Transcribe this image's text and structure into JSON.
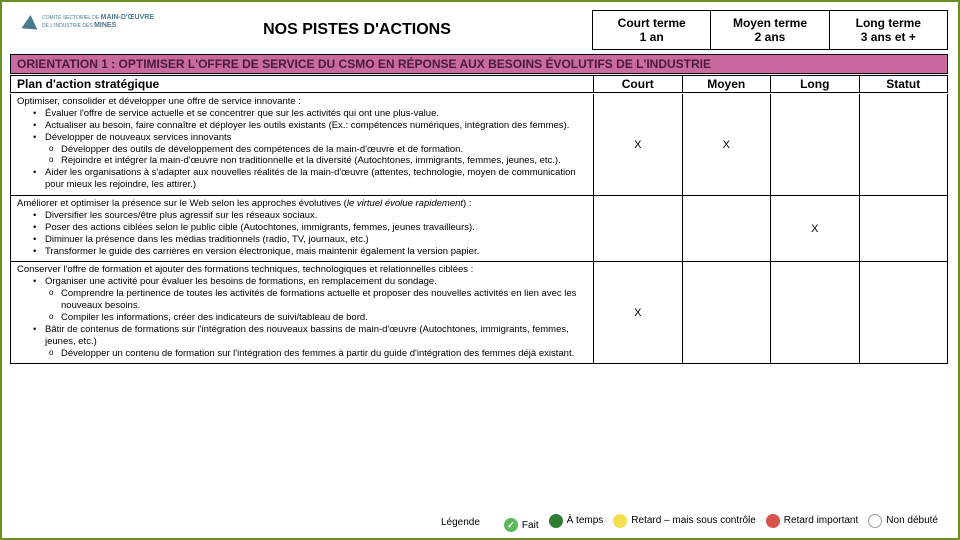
{
  "logo": {
    "line1": "COMITÉ SECTORIEL DE",
    "line2": "MAIN-D'ŒUVRE",
    "line3": "DE L'INDUSTRIE DES",
    "line4": "MINES"
  },
  "title": "NOS PISTES D'ACTIONS",
  "terms": [
    {
      "label": "Court terme",
      "duration": "1 an"
    },
    {
      "label": "Moyen terme",
      "duration": "2 ans"
    },
    {
      "label": "Long terme",
      "duration": "3 ans et +"
    }
  ],
  "orientation": "ORIENTATION 1 : OPTIMISER L'OFFRE DE SERVICE DU CSMO EN RÉPONSE AUX BESOINS ÉVOLUTIFS DE L'INDUSTRIE",
  "plan_header": {
    "title": "Plan d'action stratégique",
    "cols": [
      "Court",
      "Moyen",
      "Long",
      "Statut"
    ]
  },
  "rows": [
    {
      "intro": "Optimiser, consolider et développer une offre de service innovante :",
      "bullets": [
        "Évaluer l'offre de service actuelle et se concentrer que sur les activités qui ont une plus-value.",
        "Actualiser au besoin, faire connaître et déployer les outils existants (Ex.: compétences numériques, intégration des femmes).",
        "Développer de nouveaux services innovants"
      ],
      "sub1": [
        "Développer des outils de développement des compétences de la main-d'œuvre et de formation.",
        "Rejoindre et intégrer la main-d'œuvre non traditionnelle et la diversité (Autochtones, immigrants, femmes, jeunes, etc.)."
      ],
      "bullets_after": [
        "Aider les organisations à s'adapter aux nouvelles réalités de la main-d'œuvre (attentes, technologie, moyen de communication pour mieux les rejoindre, les attirer.)"
      ],
      "marks": [
        "X",
        "X",
        "",
        ""
      ]
    },
    {
      "intro_pre": "Améliorer et optimiser la présence sur le Web selon les approches évolutives (",
      "intro_italic": "le virtuel évolue rapidement",
      "intro_post": ") :",
      "bullets": [
        "Diversifier les sources/être plus agressif sur les réseaux sociaux.",
        "Poser des actions ciblées selon le public cible (Autochtones, immigrants, femmes, jeunes travailleurs).",
        "Diminuer la présence dans les médias traditionnels (radio, TV, journaux, etc.)",
        "Transformer le guide des carrières en version électronique, mais maintenir également la version papier."
      ],
      "marks": [
        "",
        "",
        "X",
        ""
      ]
    },
    {
      "intro": "Conserver l'offre de formation et ajouter des formations techniques, technologiques et relationnelles ciblées :",
      "bullets": [
        "Organiser une activité pour évaluer les besoins de formations, en remplacement du sondage."
      ],
      "sub1": [
        "Comprendre la pertinence de toutes les activités de formations actuelle et proposer des nouvelles activités en lien avec les nouveaux besoins.",
        "Compiler les informations, créer des indicateurs de suivi/tableau de bord."
      ],
      "bullets_after": [
        "Bâtir de contenus de formations sur l'intégration des nouveaux bassins de main-d'œuvre (Autochtones, immigrants, femmes, jeunes, etc.)"
      ],
      "sub2": [
        "Développer un contenu de formation sur l'intégration des femmes à partir du guide d'intégration des femmes déjà existant."
      ],
      "marks": [
        "X",
        "",
        "",
        ""
      ]
    }
  ],
  "legend": {
    "title": "Légende",
    "items": [
      {
        "label": "Fait",
        "color": "#5cb85c",
        "check": true
      },
      {
        "label": "À temps",
        "color": "#2e7d32",
        "check": false
      },
      {
        "label": "Retard – mais sous contrôle",
        "color": "#f5e050",
        "check": false
      },
      {
        "label": "Retard important",
        "color": "#d9534f",
        "check": false
      },
      {
        "label": "Non débuté",
        "color": "#ffffff",
        "check": false,
        "border": true
      }
    ]
  },
  "colors": {
    "orientation_bg": "#c96b9e",
    "border": "#6b8e23"
  }
}
